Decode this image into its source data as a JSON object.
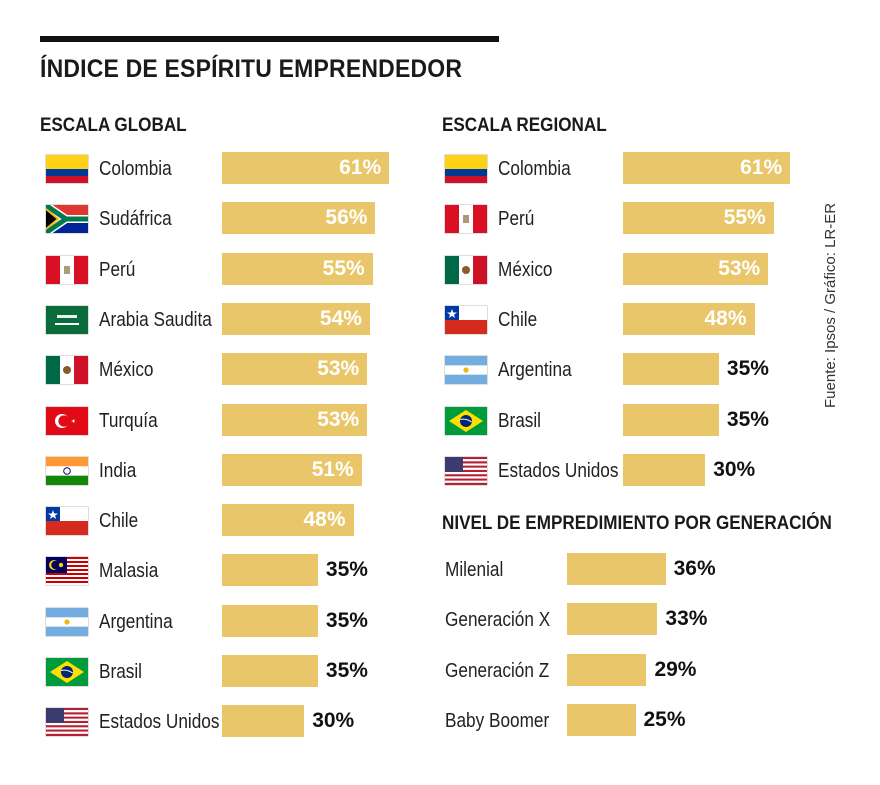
{
  "title": "ÍNDICE DE ESPÍRITU EMPRENDEDOR",
  "source": "Fuente: Ipsos / Gráfico: LR-ER",
  "chart_data": [
    {
      "type": "bar",
      "title": "ESCALA GLOBAL",
      "categories": [
        "Colombia",
        "Sudáfrica",
        "Perú",
        "Arabia Saudita",
        "México",
        "Turquía",
        "India",
        "Chile",
        "Malasia",
        "Argentina",
        "Brasil",
        "Estados Unidos"
      ],
      "values": [
        61,
        56,
        55,
        54,
        53,
        53,
        51,
        48,
        35,
        35,
        35,
        30
      ],
      "value_labels": [
        "61%",
        "56%",
        "55%",
        "54%",
        "53%",
        "53%",
        "51%",
        "48%",
        "35%",
        "35%",
        "35%",
        "30%"
      ],
      "flags": [
        "colombia",
        "south-africa",
        "peru",
        "saudi-arabia",
        "mexico",
        "turkey",
        "india",
        "chile",
        "malaysia",
        "argentina",
        "brazil",
        "usa"
      ]
    },
    {
      "type": "bar",
      "title": "ESCALA REGIONAL",
      "categories": [
        "Colombia",
        "Perú",
        "México",
        "Chile",
        "Argentina",
        "Brasil",
        "Estados Unidos"
      ],
      "values": [
        61,
        55,
        53,
        48,
        35,
        35,
        30
      ],
      "value_labels": [
        "61%",
        "55%",
        "53%",
        "48%",
        "35%",
        "35%",
        "30%"
      ],
      "flags": [
        "colombia",
        "peru",
        "mexico",
        "chile",
        "argentina",
        "brazil",
        "usa"
      ]
    },
    {
      "type": "bar",
      "title": "NIVEL DE EMPREDIMIENTO POR GENERACIÓN",
      "categories": [
        "Milenial",
        "Generación  X",
        "Generación  Z",
        "Baby Boomer"
      ],
      "values": [
        36,
        33,
        29,
        25
      ],
      "value_labels": [
        "36%",
        "33%",
        "29%",
        "25%"
      ]
    }
  ],
  "colors": {
    "bar": "#eac66a",
    "inside_label": "#ffffff",
    "outside_label": "#111111"
  }
}
